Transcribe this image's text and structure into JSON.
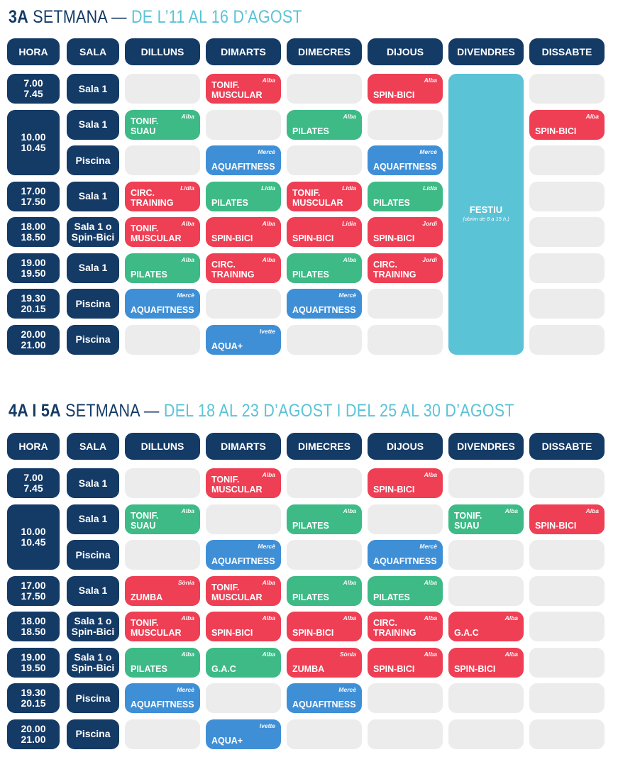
{
  "colors": {
    "navy": "#143a66",
    "r": "#ee3f55",
    "g": "#3dba86",
    "b": "#3f8fd6",
    "festiu": "#5bc3d6",
    "empty": "#ececec",
    "title_accent": "#5bc3d6"
  },
  "headers": [
    "HORA",
    "SALA",
    "DILLUNS",
    "DIMARTS",
    "DIMECRES",
    "DIJOUS",
    "DIVENDRES",
    "DISSABTE"
  ],
  "weeks": [
    {
      "title_bold": "3A",
      "title_mid": " SETMANA —",
      "title_accent": " DE L’11 AL 16 D’AGOST",
      "festiu": {
        "day": 4,
        "label": "FESTIU",
        "sub": "(obrim de 8 a 15 h.)"
      },
      "rows": [
        {
          "hora": "7.00\n7.45",
          "sala": "Sala 1",
          "cells": [
            null,
            {
              "name": "TONIF.\nMUSCULAR",
              "instr": "Alba",
              "color": "r"
            },
            null,
            {
              "name": "SPIN-BICI",
              "instr": "Alba",
              "color": "r"
            },
            null,
            null
          ]
        },
        {
          "hora": "10.00\n10.45",
          "hora_span": 2,
          "sala": "Sala 1",
          "cells": [
            {
              "name": "TONIF.\nSUAU",
              "instr": "Alba",
              "color": "g"
            },
            null,
            {
              "name": "PILATES",
              "instr": "Alba",
              "color": "g"
            },
            null,
            null,
            {
              "name": "SPIN-BICI",
              "instr": "Alba",
              "color": "r"
            }
          ]
        },
        {
          "hora": null,
          "sala": "Piscina",
          "cells": [
            null,
            {
              "name": "AQUAFITNESS",
              "instr": "Mercè",
              "color": "b"
            },
            null,
            {
              "name": "AQUAFITNESS",
              "instr": "Mercè",
              "color": "b"
            },
            null,
            null
          ]
        },
        {
          "hora": "17.00\n17.50",
          "sala": "Sala 1",
          "cells": [
            {
              "name": "CIRC.\nTRAINING",
              "instr": "Lidia",
              "color": "r"
            },
            {
              "name": "PILATES",
              "instr": "Lidia",
              "color": "g"
            },
            {
              "name": "TONIF.\nMUSCULAR",
              "instr": "Lidia",
              "color": "r"
            },
            {
              "name": "PILATES",
              "instr": "Lidia",
              "color": "g"
            },
            null,
            null
          ]
        },
        {
          "hora": "18.00\n18.50",
          "sala": "Sala 1 o\nSpin-Bici",
          "cells": [
            {
              "name": "TONIF.\nMUSCULAR",
              "instr": "Alba",
              "color": "r"
            },
            {
              "name": "SPIN-BICI",
              "instr": "Alba",
              "color": "r"
            },
            {
              "name": "SPIN-BICI",
              "instr": "Lidia",
              "color": "r"
            },
            {
              "name": "SPIN-BICI",
              "instr": "Jordi",
              "color": "r"
            },
            null,
            null
          ]
        },
        {
          "hora": "19.00\n19.50",
          "sala": "Sala 1",
          "cells": [
            {
              "name": "PILATES",
              "instr": "Alba",
              "color": "g"
            },
            {
              "name": "CIRC.\nTRAINING",
              "instr": "Alba",
              "color": "r"
            },
            {
              "name": "PILATES",
              "instr": "Alba",
              "color": "g"
            },
            {
              "name": "CIRC.\nTRAINING",
              "instr": "Jordi",
              "color": "r"
            },
            null,
            null
          ]
        },
        {
          "hora": "19.30\n20.15",
          "sala": "Piscina",
          "cells": [
            {
              "name": "AQUAFITNESS",
              "instr": "Mercè",
              "color": "b"
            },
            null,
            {
              "name": "AQUAFITNESS",
              "instr": "Mercè",
              "color": "b"
            },
            null,
            null,
            null
          ]
        },
        {
          "hora": "20.00\n21.00",
          "sala": "Piscina",
          "cells": [
            null,
            {
              "name": "AQUA+",
              "instr": "Ivette",
              "color": "b"
            },
            null,
            null,
            null,
            null
          ]
        }
      ]
    },
    {
      "title_bold": "4A I 5A",
      "title_mid": " SETMANA —",
      "title_accent": " DEL 18 AL 23 D’AGOST I DEL 25 AL 30 D’AGOST",
      "rows": [
        {
          "hora": "7.00\n7.45",
          "sala": "Sala 1",
          "cells": [
            null,
            {
              "name": "TONIF.\nMUSCULAR",
              "instr": "Alba",
              "color": "r"
            },
            null,
            {
              "name": "SPIN-BICI",
              "instr": "Alba",
              "color": "r"
            },
            null,
            null
          ]
        },
        {
          "hora": "10.00\n10.45",
          "hora_span": 2,
          "sala": "Sala 1",
          "cells": [
            {
              "name": "TONIF.\nSUAU",
              "instr": "Alba",
              "color": "g"
            },
            null,
            {
              "name": "PILATES",
              "instr": "Alba",
              "color": "g"
            },
            null,
            {
              "name": "TONIF.\nSUAU",
              "instr": "Alba",
              "color": "g"
            },
            {
              "name": "SPIN-BICI",
              "instr": "Alba",
              "color": "r"
            }
          ]
        },
        {
          "hora": null,
          "sala": "Piscina",
          "cells": [
            null,
            {
              "name": "AQUAFITNESS",
              "instr": "Mercè",
              "color": "b"
            },
            null,
            {
              "name": "AQUAFITNESS",
              "instr": "Mercè",
              "color": "b"
            },
            null,
            null
          ]
        },
        {
          "hora": "17.00\n17.50",
          "sala": "Sala 1",
          "cells": [
            {
              "name": "ZUMBA",
              "instr": "Sònia",
              "color": "r"
            },
            {
              "name": "TONIF.\nMUSCULAR",
              "instr": "Alba",
              "color": "r"
            },
            {
              "name": "PILATES",
              "instr": "Alba",
              "color": "g"
            },
            {
              "name": "PILATES",
              "instr": "Alba",
              "color": "g"
            },
            null,
            null
          ]
        },
        {
          "hora": "18.00\n18.50",
          "sala": "Sala 1 o\nSpin-Bici",
          "cells": [
            {
              "name": "TONIF.\nMUSCULAR",
              "instr": "Alba",
              "color": "r"
            },
            {
              "name": "SPIN-BICI",
              "instr": "Alba",
              "color": "r"
            },
            {
              "name": "SPIN-BICI",
              "instr": "Alba",
              "color": "r"
            },
            {
              "name": "CIRC.\nTRAINING",
              "instr": "Alba",
              "color": "r"
            },
            {
              "name": "G.A.C",
              "instr": "Alba",
              "color": "r"
            },
            null
          ]
        },
        {
          "hora": "19.00\n19.50",
          "sala": "Sala 1 o\nSpin-Bici",
          "cells": [
            {
              "name": "PILATES",
              "instr": "Alba",
              "color": "g"
            },
            {
              "name": "G.A.C",
              "instr": "Alba",
              "color": "g"
            },
            {
              "name": "ZUMBA",
              "instr": "Sònia",
              "color": "r"
            },
            {
              "name": "SPIN-BICI",
              "instr": "Alba",
              "color": "r"
            },
            {
              "name": "SPIN-BICI",
              "instr": "Alba",
              "color": "r"
            },
            null
          ]
        },
        {
          "hora": "19.30\n20.15",
          "sala": "Piscina",
          "cells": [
            {
              "name": "AQUAFITNESS",
              "instr": "Mercè",
              "color": "b"
            },
            null,
            {
              "name": "AQUAFITNESS",
              "instr": "Mercè",
              "color": "b"
            },
            null,
            null,
            null
          ]
        },
        {
          "hora": "20.00\n21.00",
          "sala": "Piscina",
          "cells": [
            null,
            {
              "name": "AQUA+",
              "instr": "Ivette",
              "color": "b"
            },
            null,
            null,
            null,
            null
          ]
        }
      ]
    }
  ]
}
